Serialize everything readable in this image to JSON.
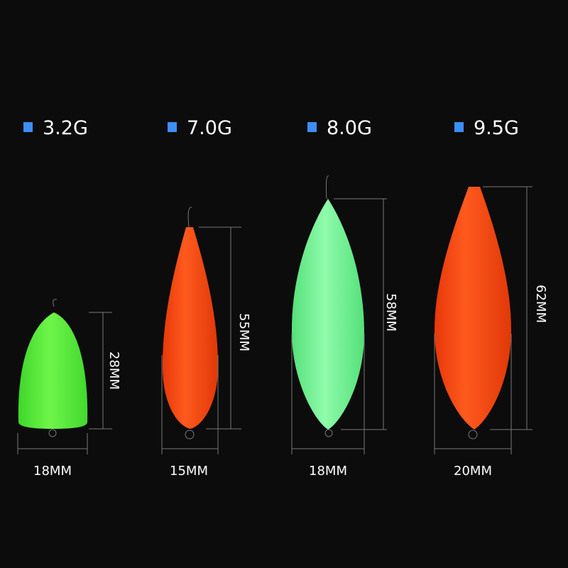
{
  "colors": {
    "background": "#0c0c0c",
    "bullet": "#3d8ef5",
    "green_float": "#5ef03a",
    "mint_float": "#7df59a",
    "orange_float": "#ff4d12"
  },
  "floats": [
    {
      "weight": "3.2G",
      "height": "28MM",
      "width": "18MM",
      "color": "green"
    },
    {
      "weight": "7.0G",
      "height": "55MM",
      "width": "15MM",
      "color": "orange"
    },
    {
      "weight": "8.0G",
      "height": "58MM",
      "width": "18MM",
      "color": "mint green"
    },
    {
      "weight": "9.5G",
      "height": "62MM",
      "width": "20MM",
      "color": "orange"
    }
  ]
}
